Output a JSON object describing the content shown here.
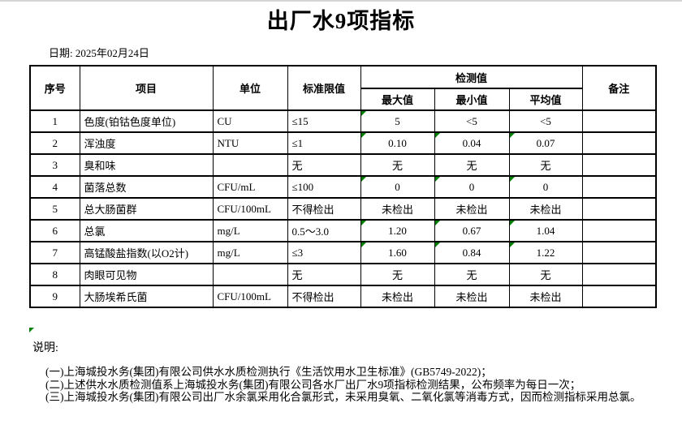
{
  "window": {
    "top_border_color": "#d4d4d4"
  },
  "header": {
    "title": "出厂水9项指标",
    "date_label": "日期:",
    "date_value": "2025年02月24日"
  },
  "table": {
    "columns": {
      "no": "序号",
      "item": "项目",
      "unit": "单位",
      "limit": "标准限值",
      "detect_group": "检测值",
      "max": "最大值",
      "min": "最小值",
      "avg": "平均值",
      "remark": "备注"
    },
    "rows": [
      {
        "no": "1",
        "item": "色度(铂钴色度单位)",
        "unit": "CU",
        "limit": "≤15",
        "max": "5",
        "min": "<5",
        "avg": "<5",
        "remark": "",
        "markers": [
          "max"
        ]
      },
      {
        "no": "2",
        "item": "浑浊度",
        "unit": "NTU",
        "limit": "≤1",
        "max": "0.10",
        "min": "0.04",
        "avg": "0.07",
        "remark": "",
        "markers": [
          "max",
          "min",
          "avg"
        ]
      },
      {
        "no": "3",
        "item": "臭和味",
        "unit": "",
        "limit": "无",
        "max": "无",
        "min": "无",
        "avg": "无",
        "remark": "",
        "markers": []
      },
      {
        "no": "4",
        "item": "菌落总数",
        "unit": "CFU/mL",
        "limit": "≤100",
        "max": "0",
        "min": "0",
        "avg": "0",
        "remark": "",
        "markers": [
          "max",
          "min",
          "avg"
        ]
      },
      {
        "no": "5",
        "item": "总大肠菌群",
        "unit": "CFU/100mL",
        "limit": "不得检出",
        "max": "未检出",
        "min": "未检出",
        "avg": "未检出",
        "remark": "",
        "markers": []
      },
      {
        "no": "6",
        "item": "总氯",
        "unit": "mg/L",
        "limit": "0.5～3.0",
        "max": "1.20",
        "min": "0.67",
        "avg": "1.04",
        "remark": "",
        "markers": [
          "max",
          "min",
          "avg"
        ]
      },
      {
        "no": "7",
        "item": "高锰酸盐指数(以O2计)",
        "unit": "mg/L",
        "limit": "≤3",
        "max": "1.60",
        "min": "0.84",
        "avg": "1.22",
        "remark": "",
        "markers": [
          "max",
          "min",
          "avg"
        ]
      },
      {
        "no": "8",
        "item": "肉眼可见物",
        "unit": "",
        "limit": "无",
        "max": "无",
        "min": "无",
        "avg": "无",
        "remark": "",
        "markers": []
      },
      {
        "no": "9",
        "item": "大肠埃希氏菌",
        "unit": "CFU/100mL",
        "limit": "不得检出",
        "max": "未检出",
        "min": "未检出",
        "avg": "未检出",
        "remark": "",
        "markers": []
      }
    ]
  },
  "notes": {
    "label": "说明:",
    "items": [
      "(一)上海城投水务(集团)有限公司供水水质检测执行《生活饮用水卫生标准》(GB5749-2022)；",
      "(二)上述供水水质检测值系上海城投水务(集团)有限公司各水厂出厂水9项指标检测结果，公布频率为每日一次；",
      "(三)上海城投水务(集团)有限公司出厂水余氯采用化合氯形式，未采用臭氧、二氧化氯等消毒方式，因而检测指标采用总氯。"
    ]
  },
  "colors": {
    "marker_green": "#008000",
    "border_black": "#000000"
  }
}
